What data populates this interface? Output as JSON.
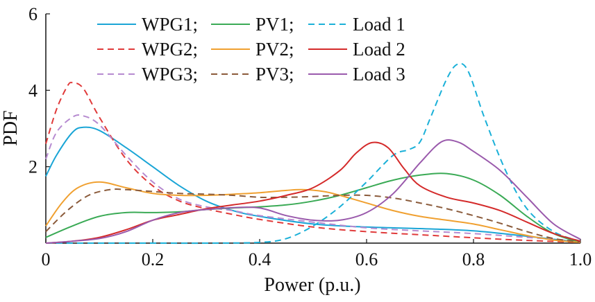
{
  "chart_data": {
    "type": "line",
    "title": "",
    "xlabel": "Power (p.u.)",
    "ylabel": "PDF",
    "xlim": [
      0,
      1.0
    ],
    "ylim": [
      0,
      6
    ],
    "x_ticks": [
      {
        "value": 0,
        "label": "0"
      },
      {
        "value": 0.2,
        "label": "0.2"
      },
      {
        "value": 0.4,
        "label": "0.4"
      },
      {
        "value": 0.6,
        "label": "0.6"
      },
      {
        "value": 0.8,
        "label": "0.8"
      },
      {
        "value": 1.0,
        "label": "1.0"
      }
    ],
    "y_ticks": [
      {
        "value": 2,
        "label": "2"
      },
      {
        "value": 4,
        "label": "4"
      },
      {
        "value": 6,
        "label": "6"
      }
    ],
    "grid": false,
    "legend": {
      "placement": "top",
      "columns": 3,
      "entries": [
        "WPG1;",
        "PV1;",
        "Load 1",
        "WPG2;",
        "PV2;",
        "Load 2",
        "WPG3;",
        "PV3;",
        "Load 3"
      ]
    },
    "series": [
      {
        "name": "WPG1",
        "color": "#1aa5d6",
        "dash": "solid",
        "points": [
          [
            0,
            1.75
          ],
          [
            0.02,
            2.3
          ],
          [
            0.05,
            2.9
          ],
          [
            0.07,
            3.03
          ],
          [
            0.1,
            2.95
          ],
          [
            0.15,
            2.5
          ],
          [
            0.2,
            2.0
          ],
          [
            0.25,
            1.5
          ],
          [
            0.3,
            1.1
          ],
          [
            0.35,
            0.85
          ],
          [
            0.4,
            0.7
          ],
          [
            0.5,
            0.5
          ],
          [
            0.6,
            0.42
          ],
          [
            0.7,
            0.38
          ],
          [
            0.8,
            0.32
          ],
          [
            0.9,
            0.18
          ],
          [
            1.0,
            0.02
          ]
        ]
      },
      {
        "name": "WPG2",
        "color": "#e03a3a",
        "dash": "dashed",
        "points": [
          [
            0,
            2.6
          ],
          [
            0.02,
            3.5
          ],
          [
            0.04,
            4.1
          ],
          [
            0.05,
            4.2
          ],
          [
            0.07,
            4.05
          ],
          [
            0.1,
            3.3
          ],
          [
            0.15,
            2.2
          ],
          [
            0.2,
            1.5
          ],
          [
            0.25,
            1.1
          ],
          [
            0.3,
            0.9
          ],
          [
            0.35,
            0.75
          ],
          [
            0.4,
            0.62
          ],
          [
            0.5,
            0.42
          ],
          [
            0.6,
            0.3
          ],
          [
            0.7,
            0.22
          ],
          [
            0.8,
            0.14
          ],
          [
            0.9,
            0.07
          ],
          [
            1.0,
            0.02
          ]
        ]
      },
      {
        "name": "WPG3",
        "color": "#b68ad0",
        "dash": "dashed",
        "points": [
          [
            0,
            2.2
          ],
          [
            0.02,
            2.9
          ],
          [
            0.05,
            3.3
          ],
          [
            0.07,
            3.33
          ],
          [
            0.1,
            3.1
          ],
          [
            0.15,
            2.3
          ],
          [
            0.2,
            1.6
          ],
          [
            0.25,
            1.15
          ],
          [
            0.3,
            0.95
          ],
          [
            0.35,
            0.85
          ],
          [
            0.4,
            0.72
          ],
          [
            0.5,
            0.55
          ],
          [
            0.6,
            0.4
          ],
          [
            0.7,
            0.32
          ],
          [
            0.8,
            0.25
          ],
          [
            0.9,
            0.15
          ],
          [
            1.0,
            0.05
          ]
        ]
      },
      {
        "name": "PV1",
        "color": "#3aaa55",
        "dash": "solid",
        "points": [
          [
            0,
            0.15
          ],
          [
            0.05,
            0.45
          ],
          [
            0.1,
            0.7
          ],
          [
            0.15,
            0.8
          ],
          [
            0.2,
            0.8
          ],
          [
            0.25,
            0.82
          ],
          [
            0.3,
            0.88
          ],
          [
            0.35,
            0.92
          ],
          [
            0.4,
            0.95
          ],
          [
            0.45,
            1.0
          ],
          [
            0.5,
            1.1
          ],
          [
            0.55,
            1.25
          ],
          [
            0.6,
            1.45
          ],
          [
            0.65,
            1.65
          ],
          [
            0.7,
            1.78
          ],
          [
            0.75,
            1.82
          ],
          [
            0.8,
            1.65
          ],
          [
            0.85,
            1.25
          ],
          [
            0.9,
            0.7
          ],
          [
            0.95,
            0.25
          ],
          [
            1.0,
            0.02
          ]
        ]
      },
      {
        "name": "PV2",
        "color": "#f0a030",
        "dash": "solid",
        "points": [
          [
            0,
            0.45
          ],
          [
            0.03,
            1.05
          ],
          [
            0.06,
            1.45
          ],
          [
            0.1,
            1.6
          ],
          [
            0.15,
            1.45
          ],
          [
            0.2,
            1.3
          ],
          [
            0.25,
            1.25
          ],
          [
            0.3,
            1.25
          ],
          [
            0.35,
            1.28
          ],
          [
            0.4,
            1.32
          ],
          [
            0.45,
            1.38
          ],
          [
            0.48,
            1.4
          ],
          [
            0.52,
            1.35
          ],
          [
            0.55,
            1.25
          ],
          [
            0.6,
            1.05
          ],
          [
            0.65,
            0.85
          ],
          [
            0.7,
            0.7
          ],
          [
            0.75,
            0.6
          ],
          [
            0.8,
            0.5
          ],
          [
            0.85,
            0.35
          ],
          [
            0.9,
            0.2
          ],
          [
            0.95,
            0.08
          ],
          [
            1.0,
            0.02
          ]
        ]
      },
      {
        "name": "PV3",
        "color": "#8a5a3a",
        "dash": "dashed",
        "points": [
          [
            0,
            0.3
          ],
          [
            0.04,
            0.85
          ],
          [
            0.08,
            1.25
          ],
          [
            0.12,
            1.4
          ],
          [
            0.15,
            1.4
          ],
          [
            0.2,
            1.35
          ],
          [
            0.25,
            1.3
          ],
          [
            0.3,
            1.28
          ],
          [
            0.35,
            1.25
          ],
          [
            0.4,
            1.2
          ],
          [
            0.45,
            1.2
          ],
          [
            0.5,
            1.22
          ],
          [
            0.55,
            1.25
          ],
          [
            0.6,
            1.25
          ],
          [
            0.65,
            1.18
          ],
          [
            0.7,
            1.05
          ],
          [
            0.75,
            0.9
          ],
          [
            0.8,
            0.72
          ],
          [
            0.85,
            0.52
          ],
          [
            0.9,
            0.3
          ],
          [
            0.95,
            0.12
          ],
          [
            1.0,
            0.03
          ]
        ]
      },
      {
        "name": "Load 1",
        "color": "#1ab0d8",
        "dash": "dashed",
        "points": [
          [
            0,
            0
          ],
          [
            0.1,
            0
          ],
          [
            0.2,
            0
          ],
          [
            0.3,
            0
          ],
          [
            0.4,
            0.02
          ],
          [
            0.45,
            0.12
          ],
          [
            0.5,
            0.45
          ],
          [
            0.55,
            0.95
          ],
          [
            0.6,
            1.6
          ],
          [
            0.65,
            2.3
          ],
          [
            0.68,
            2.45
          ],
          [
            0.7,
            2.65
          ],
          [
            0.72,
            3.3
          ],
          [
            0.75,
            4.3
          ],
          [
            0.77,
            4.68
          ],
          [
            0.79,
            4.5
          ],
          [
            0.82,
            3.3
          ],
          [
            0.86,
            1.9
          ],
          [
            0.9,
            0.9
          ],
          [
            0.95,
            0.3
          ],
          [
            1.0,
            0.05
          ]
        ]
      },
      {
        "name": "Load 2",
        "color": "#d42a2a",
        "dash": "solid",
        "points": [
          [
            0,
            0
          ],
          [
            0.05,
            0.05
          ],
          [
            0.1,
            0.15
          ],
          [
            0.15,
            0.35
          ],
          [
            0.2,
            0.6
          ],
          [
            0.25,
            0.75
          ],
          [
            0.3,
            0.9
          ],
          [
            0.35,
            1.0
          ],
          [
            0.4,
            1.1
          ],
          [
            0.45,
            1.25
          ],
          [
            0.5,
            1.45
          ],
          [
            0.55,
            1.9
          ],
          [
            0.58,
            2.35
          ],
          [
            0.61,
            2.63
          ],
          [
            0.64,
            2.5
          ],
          [
            0.67,
            1.95
          ],
          [
            0.7,
            1.5
          ],
          [
            0.75,
            1.2
          ],
          [
            0.8,
            1.05
          ],
          [
            0.85,
            0.85
          ],
          [
            0.9,
            0.55
          ],
          [
            0.95,
            0.25
          ],
          [
            1.0,
            0.05
          ]
        ]
      },
      {
        "name": "Load 3",
        "color": "#9a5aac",
        "dash": "solid",
        "points": [
          [
            0,
            0
          ],
          [
            0.05,
            0.05
          ],
          [
            0.1,
            0.12
          ],
          [
            0.15,
            0.3
          ],
          [
            0.2,
            0.6
          ],
          [
            0.25,
            0.8
          ],
          [
            0.3,
            0.88
          ],
          [
            0.35,
            0.93
          ],
          [
            0.4,
            0.92
          ],
          [
            0.45,
            0.72
          ],
          [
            0.5,
            0.6
          ],
          [
            0.55,
            0.6
          ],
          [
            0.6,
            0.8
          ],
          [
            0.65,
            1.3
          ],
          [
            0.7,
            2.1
          ],
          [
            0.74,
            2.65
          ],
          [
            0.77,
            2.65
          ],
          [
            0.8,
            2.4
          ],
          [
            0.85,
            1.9
          ],
          [
            0.9,
            1.2
          ],
          [
            0.95,
            0.5
          ],
          [
            1.0,
            0.1
          ]
        ]
      }
    ]
  }
}
